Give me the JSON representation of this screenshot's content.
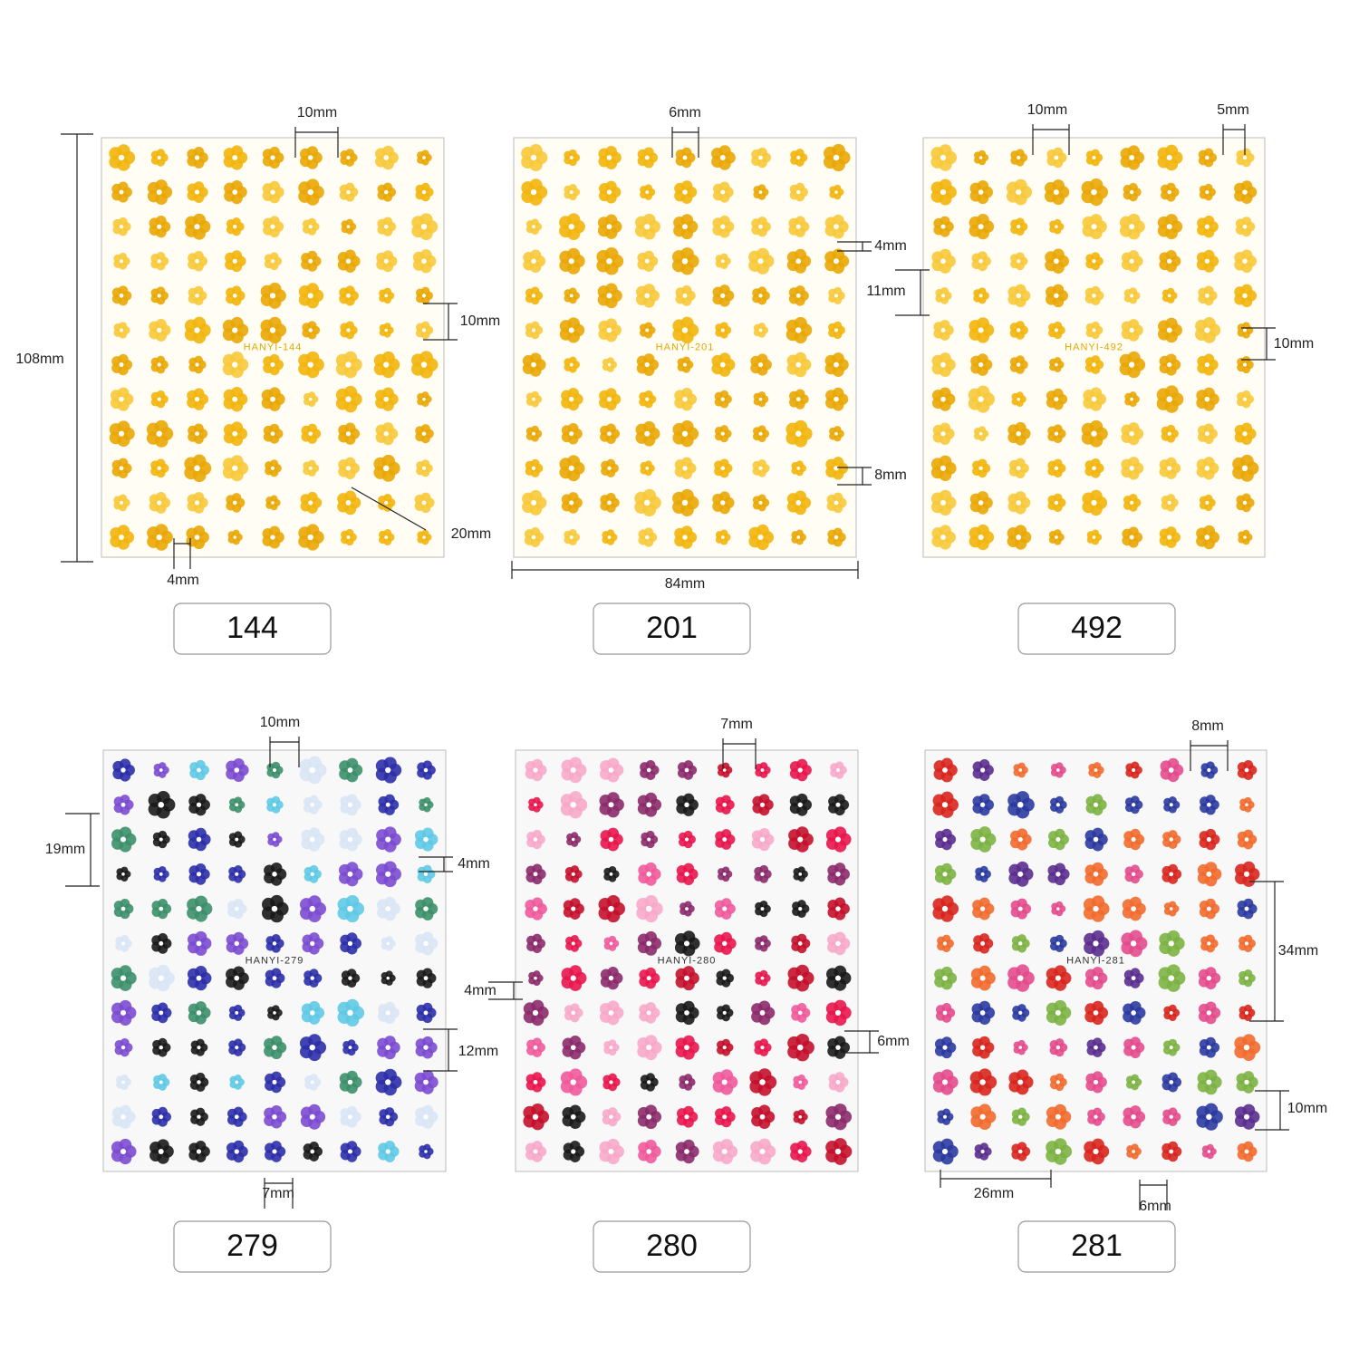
{
  "sheets": [
    {
      "label": "144",
      "code": "HANYI-144",
      "dimensions": [
        "10mm",
        "108mm",
        "10mm",
        "20mm",
        "4mm"
      ]
    },
    {
      "label": "201",
      "code": "HANYI-201",
      "dimensions": [
        "6mm",
        "4mm",
        "8mm",
        "84mm"
      ]
    },
    {
      "label": "492",
      "code": "HANYI-492",
      "dimensions": [
        "10mm",
        "5mm",
        "11mm",
        "10mm"
      ]
    },
    {
      "label": "279",
      "code": "HANYI-279",
      "dimensions": [
        "10mm",
        "19mm",
        "4mm",
        "12mm",
        "7mm"
      ]
    },
    {
      "label": "280",
      "code": "HANYI-280",
      "dimensions": [
        "7mm",
        "4mm",
        "6mm"
      ]
    },
    {
      "label": "281",
      "code": "HANYI-281",
      "dimensions": [
        "8mm",
        "34mm",
        "10mm",
        "26mm",
        "6mm"
      ]
    }
  ]
}
